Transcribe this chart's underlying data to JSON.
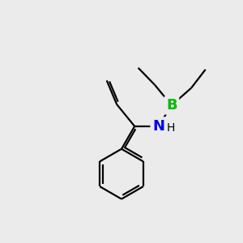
{
  "background_color": "#ebebeb",
  "bond_color": "#000000",
  "B_color": "#00bb00",
  "N_color": "#0000ee",
  "bond_width": 1.6,
  "fig_size": [
    3.0,
    3.0
  ],
  "dpi": 100,
  "xlim": [
    0,
    10
  ],
  "ylim": [
    0,
    10
  ]
}
